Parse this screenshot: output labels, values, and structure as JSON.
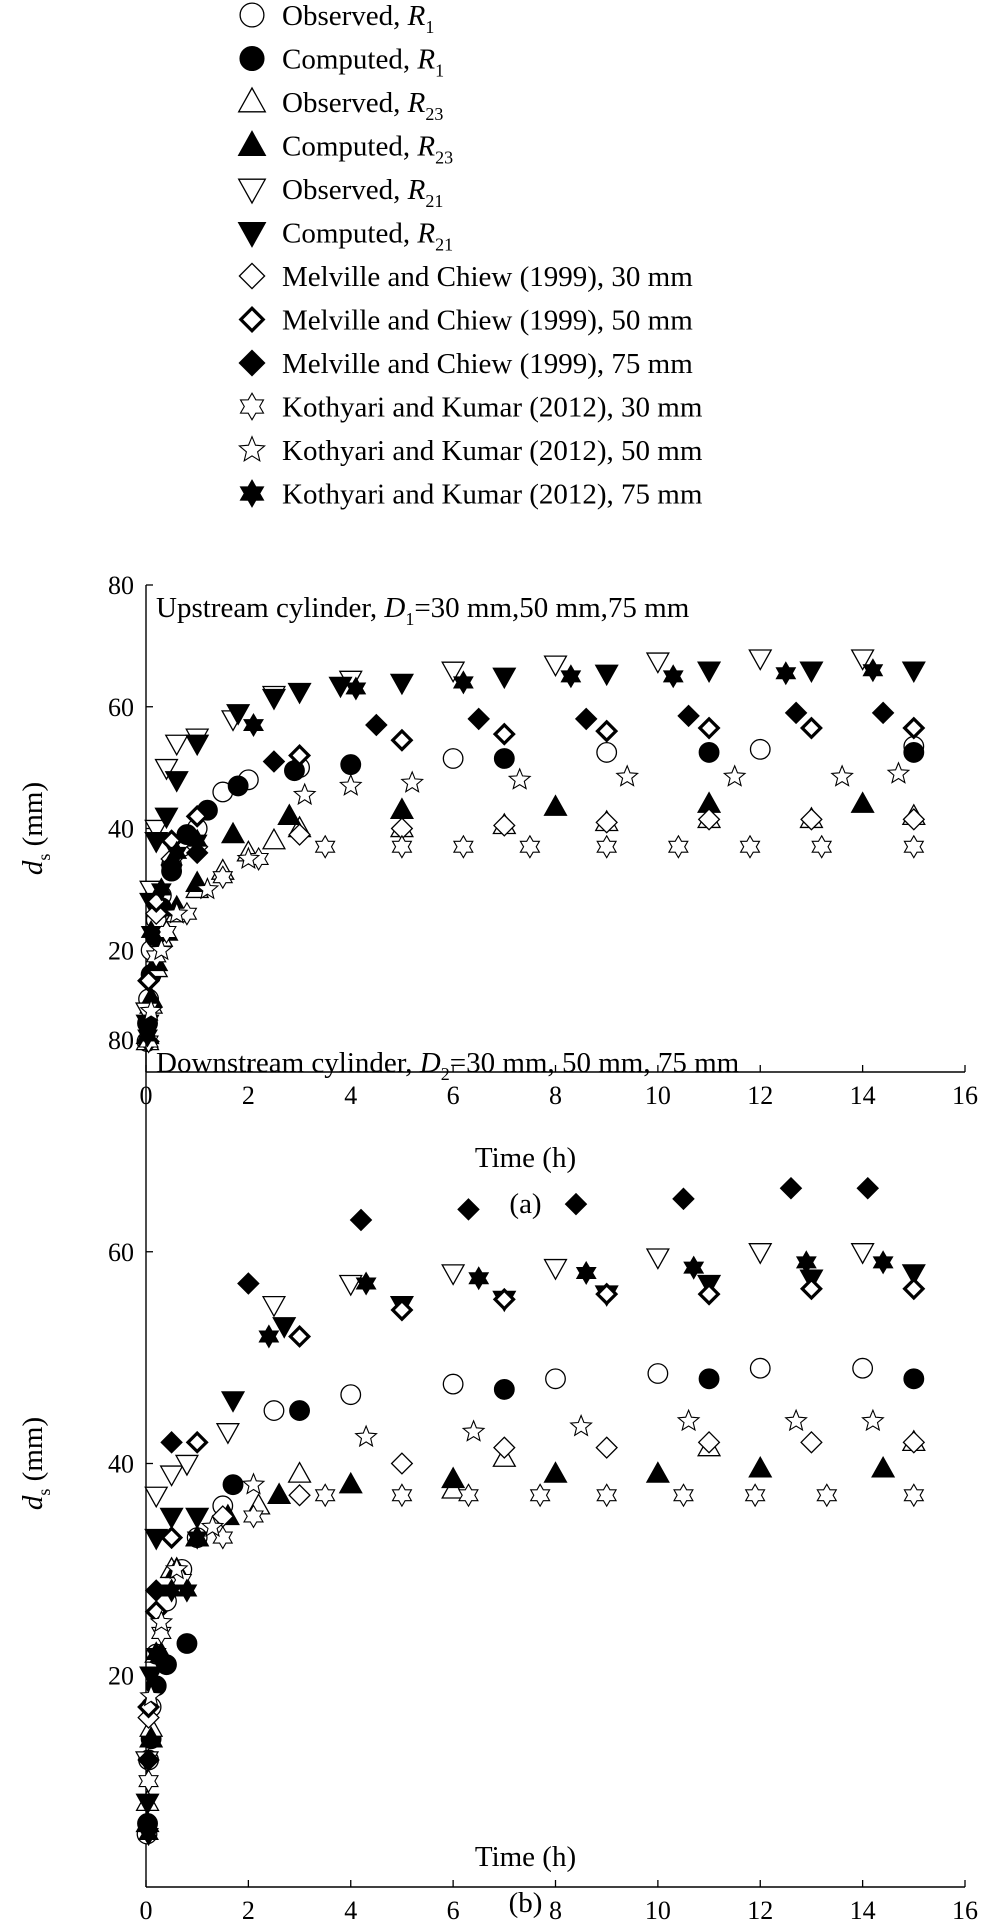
{
  "legend": [
    {
      "id": "obs_r1",
      "marker": "circle",
      "fill": "open",
      "prefix": "Observed, ",
      "italic": "R",
      "sub": "1"
    },
    {
      "id": "comp_r1",
      "marker": "circle",
      "fill": "solid",
      "prefix": "Computed, ",
      "italic": "R",
      "sub": "1"
    },
    {
      "id": "obs_r23",
      "marker": "triangle-up",
      "fill": "open",
      "prefix": "Observed, ",
      "italic": "R",
      "sub": "23"
    },
    {
      "id": "comp_r23",
      "marker": "triangle-up",
      "fill": "solid",
      "prefix": "Computed, ",
      "italic": "R",
      "sub": "23"
    },
    {
      "id": "obs_r21",
      "marker": "triangle-down",
      "fill": "open",
      "prefix": "Observed, ",
      "italic": "R",
      "sub": "21"
    },
    {
      "id": "comp_r21",
      "marker": "triangle-down",
      "fill": "solid",
      "prefix": "Computed, ",
      "italic": "R",
      "sub": "21"
    },
    {
      "id": "mc30",
      "marker": "diamond",
      "fill": "open",
      "prefix": "Melville and Chiew (1999), 30 mm",
      "italic": "",
      "sub": ""
    },
    {
      "id": "mc50",
      "marker": "diamond",
      "fill": "thick",
      "prefix": "Melville and Chiew (1999), 50 mm",
      "italic": "",
      "sub": ""
    },
    {
      "id": "mc75",
      "marker": "diamond",
      "fill": "solid",
      "prefix": "Melville and Chiew (1999), 75 mm",
      "italic": "",
      "sub": ""
    },
    {
      "id": "kk30",
      "marker": "star6",
      "fill": "open",
      "prefix": "Kothyari and Kumar (2012), 30 mm",
      "italic": "",
      "sub": ""
    },
    {
      "id": "kk50",
      "marker": "star5",
      "fill": "open",
      "prefix": "Kothyari and Kumar (2012), 50 mm",
      "italic": "",
      "sub": ""
    },
    {
      "id": "kk75",
      "marker": "star6",
      "fill": "solid",
      "prefix": "Kothyari and Kumar (2012), 75 mm",
      "italic": "",
      "sub": ""
    }
  ],
  "chart_data": [
    {
      "type": "scatter",
      "panel_label": "(a)",
      "title_prefix": "Upstream cylinder, ",
      "title_var": "D",
      "title_sub": "1",
      "title_suffix": "=30 mm,50 mm,75 mm",
      "xlabel": "Time (h)",
      "ylabel_var": "d",
      "ylabel_sub": "s",
      "ylabel_suffix": " (mm)",
      "xlim": [
        0,
        16
      ],
      "ylim": [
        0,
        80
      ],
      "xticks": [
        0,
        2,
        4,
        6,
        8,
        10,
        12,
        14,
        16
      ],
      "yticks": [
        20,
        40,
        60,
        80
      ],
      "series": [
        {
          "name": "obs_r1",
          "x": [
            0.02,
            0.05,
            0.1,
            0.2,
            0.3,
            0.5,
            0.7,
            1.0,
            1.5,
            2.0,
            3.0,
            6.0,
            9.0,
            12.0,
            15.0
          ],
          "y": [
            5,
            12,
            20,
            25,
            29,
            34,
            37,
            40,
            46,
            48,
            50,
            51.5,
            52.5,
            53,
            53.5
          ]
        },
        {
          "name": "comp_r1",
          "x": [
            0.03,
            0.1,
            0.2,
            0.3,
            0.5,
            0.8,
            1.2,
            1.8,
            2.9,
            4.0,
            7.0,
            11.0,
            15.0
          ],
          "y": [
            8,
            16,
            22,
            27,
            33,
            39,
            43,
            47,
            49.5,
            50.5,
            51.5,
            52.5,
            52.5
          ]
        },
        {
          "name": "obs_r23",
          "x": [
            0.03,
            0.1,
            0.2,
            0.3,
            0.6,
            1.0,
            1.5,
            2.0,
            2.5,
            3.0,
            5.0,
            7.0,
            9.0,
            11.0,
            13.0,
            15.0
          ],
          "y": [
            5,
            11,
            17,
            22,
            26,
            30,
            33,
            36,
            38,
            40,
            40,
            40.5,
            41,
            41.5,
            41.5,
            42
          ]
        },
        {
          "name": "comp_r23",
          "x": [
            0.03,
            0.1,
            0.2,
            0.4,
            0.6,
            1.0,
            1.7,
            2.8,
            5.0,
            8.0,
            11.0,
            14.0
          ],
          "y": [
            6,
            12,
            18,
            23,
            27,
            31,
            39,
            42,
            43,
            43.5,
            44,
            44
          ]
        },
        {
          "name": "obs_r21",
          "x": [
            0.02,
            0.1,
            0.2,
            0.4,
            0.6,
            1.0,
            1.7,
            2.5,
            4.0,
            6.0,
            8.0,
            10.0,
            12.0,
            14.0
          ],
          "y": [
            10,
            30,
            40,
            50,
            54,
            55,
            58,
            62,
            64.5,
            66,
            67,
            67.5,
            68,
            68
          ]
        },
        {
          "name": "comp_r21",
          "x": [
            0.03,
            0.1,
            0.2,
            0.4,
            0.6,
            1.0,
            1.8,
            2.5,
            3.0,
            3.8,
            5.0,
            7.0,
            9.0,
            11.0,
            13.0,
            15.0
          ],
          "y": [
            8,
            28,
            38,
            42,
            48,
            54,
            59,
            61.5,
            62.5,
            63.5,
            64,
            65,
            65.5,
            66,
            66,
            66
          ]
        },
        {
          "name": "mc30",
          "x": [
            0.05,
            0.2,
            0.5,
            1.0,
            3.0,
            5.0,
            7.0,
            9.0,
            11.0,
            13.0,
            15.0
          ],
          "y": [
            15,
            26,
            35,
            37,
            39,
            40,
            40.5,
            41,
            41.5,
            41.5,
            41.5
          ]
        },
        {
          "name": "mc50",
          "x": [
            0.05,
            0.2,
            0.5,
            1.0,
            3.0,
            5.0,
            7.0,
            9.0,
            11.0,
            13.0,
            15.0
          ],
          "y": [
            15,
            28,
            38,
            42,
            52,
            54.5,
            55.5,
            56,
            56.5,
            56.5,
            56.5
          ]
        },
        {
          "name": "mc75",
          "x": [
            0.05,
            0.2,
            0.5,
            1.0,
            2.5,
            4.5,
            6.5,
            8.6,
            10.6,
            12.7,
            14.4
          ],
          "y": [
            5,
            22,
            34,
            36,
            51,
            57,
            58,
            58,
            58.5,
            59,
            59
          ]
        },
        {
          "name": "kk30",
          "x": [
            0.05,
            0.2,
            0.4,
            0.8,
            1.5,
            2.2,
            3.5,
            5.0,
            6.2,
            7.5,
            9.0,
            10.4,
            11.8,
            13.2,
            15.0
          ],
          "y": [
            5,
            19,
            23,
            26,
            32,
            35,
            37,
            37,
            37,
            37,
            37,
            37,
            37,
            37,
            37
          ]
        },
        {
          "name": "kk50",
          "x": [
            0.1,
            0.3,
            0.6,
            1.2,
            2.0,
            3.1,
            4.0,
            5.2,
            7.3,
            9.4,
            11.5,
            13.6,
            14.7
          ],
          "y": [
            10,
            20,
            26,
            30,
            35,
            45.5,
            47,
            47.5,
            48,
            48.5,
            48.5,
            48.5,
            49
          ]
        },
        {
          "name": "kk75",
          "x": [
            0.03,
            0.1,
            0.3,
            0.6,
            1.0,
            2.1,
            4.1,
            6.2,
            8.3,
            10.3,
            12.5,
            14.2
          ],
          "y": [
            6,
            23,
            30,
            36,
            38,
            57,
            63,
            64,
            65,
            65,
            65.5,
            66
          ]
        }
      ]
    },
    {
      "type": "scatter",
      "panel_label": "(b)",
      "title_prefix": "Downstream cylinder, ",
      "title_var": "D",
      "title_sub": "2",
      "title_suffix": "=30 mm, 50 mm, 75 mm",
      "xlabel": "Time (h)",
      "ylabel_var": "d",
      "ylabel_sub": "s",
      "ylabel_suffix": " (mm)",
      "xlim": [
        0,
        16
      ],
      "ylim": [
        0,
        80
      ],
      "xticks": [
        0,
        2,
        4,
        6,
        8,
        10,
        12,
        14,
        16
      ],
      "yticks": [
        20,
        40,
        60,
        80
      ],
      "series": [
        {
          "name": "obs_r1",
          "x": [
            0.02,
            0.05,
            0.1,
            0.2,
            0.4,
            0.7,
            1.0,
            1.5,
            2.5,
            4.0,
            6.0,
            8.0,
            10.0,
            12.0,
            14.0
          ],
          "y": [
            5,
            12,
            17,
            22,
            27,
            30,
            33,
            36,
            45,
            46.5,
            47.5,
            48,
            48.5,
            49,
            49
          ]
        },
        {
          "name": "comp_r1",
          "x": [
            0.03,
            0.1,
            0.2,
            0.4,
            0.8,
            1.7,
            3.0,
            7.0,
            11.0,
            15.0
          ],
          "y": [
            6,
            14,
            19,
            21,
            23,
            38,
            45,
            47,
            48,
            48
          ]
        },
        {
          "name": "obs_r23",
          "x": [
            0.03,
            0.1,
            0.2,
            0.5,
            1.0,
            2.2,
            3.0,
            6.0,
            7.0,
            11.0,
            15.0
          ],
          "y": [
            8,
            15,
            22,
            30,
            33,
            36,
            39,
            37.5,
            40.5,
            41.5,
            42
          ]
        },
        {
          "name": "comp_r23",
          "x": [
            0.03,
            0.1,
            0.3,
            0.6,
            1.0,
            1.6,
            2.6,
            4.0,
            6.0,
            8.0,
            10.0,
            12.0,
            14.4
          ],
          "y": [
            6,
            14,
            22,
            30,
            33,
            35,
            37,
            38,
            38.5,
            39,
            39,
            39.5,
            39.5
          ]
        },
        {
          "name": "obs_r21",
          "x": [
            0.02,
            0.2,
            0.5,
            0.8,
            1.6,
            2.5,
            4.0,
            6.0,
            8.0,
            10.0,
            12.0,
            14.0
          ],
          "y": [
            12,
            37,
            39,
            40,
            43,
            55,
            57,
            58,
            58.5,
            59.5,
            60,
            60
          ]
        },
        {
          "name": "comp_r21",
          "x": [
            0.03,
            0.1,
            0.2,
            0.5,
            1.0,
            1.7,
            2.7,
            5.0,
            7.0,
            9.0,
            11.0,
            13.0,
            15.0
          ],
          "y": [
            8,
            20,
            33,
            35,
            35,
            46,
            53,
            55,
            55.5,
            56,
            57,
            57.5,
            58
          ]
        },
        {
          "name": "mc30",
          "x": [
            0.05,
            0.2,
            0.5,
            1.5,
            3.0,
            5.0,
            7.0,
            9.0,
            11.0,
            13.0,
            15.0
          ],
          "y": [
            16,
            26,
            33,
            35,
            37,
            40,
            41.5,
            41.5,
            42,
            42,
            42
          ]
        },
        {
          "name": "mc50",
          "x": [
            0.05,
            0.2,
            0.5,
            1.0,
            3.0,
            5.0,
            7.0,
            9.0,
            11.0,
            13.0,
            15.0
          ],
          "y": [
            17,
            26,
            33,
            42,
            52,
            54.5,
            55.5,
            56,
            56,
            56.5,
            56.5
          ]
        },
        {
          "name": "mc75",
          "x": [
            0.05,
            0.2,
            0.5,
            2.0,
            4.2,
            6.3,
            8.4,
            10.5,
            12.6,
            14.1
          ],
          "y": [
            12,
            28,
            42,
            57,
            63,
            64,
            64.5,
            65,
            66,
            66
          ]
        },
        {
          "name": "kk30",
          "x": [
            0.05,
            0.3,
            0.7,
            1.5,
            2.1,
            3.5,
            5.0,
            6.3,
            7.7,
            9.0,
            10.5,
            11.9,
            13.3,
            15.0
          ],
          "y": [
            10,
            24,
            29,
            33,
            35,
            37,
            37,
            37,
            37,
            37,
            37,
            37,
            37,
            37
          ]
        },
        {
          "name": "kk50",
          "x": [
            0.1,
            0.3,
            0.6,
            1.3,
            2.1,
            4.3,
            6.4,
            8.5,
            10.6,
            12.7,
            14.2
          ],
          "y": [
            18,
            25,
            30,
            34,
            38,
            42.5,
            43,
            43.5,
            44,
            44,
            44
          ]
        },
        {
          "name": "kk75",
          "x": [
            0.05,
            0.2,
            0.5,
            0.8,
            1.0,
            2.4,
            4.3,
            6.5,
            8.6,
            10.7,
            12.9,
            14.4
          ],
          "y": [
            5,
            22,
            28,
            28,
            33,
            52,
            57,
            57.5,
            58,
            58.5,
            59,
            59
          ]
        }
      ]
    }
  ]
}
